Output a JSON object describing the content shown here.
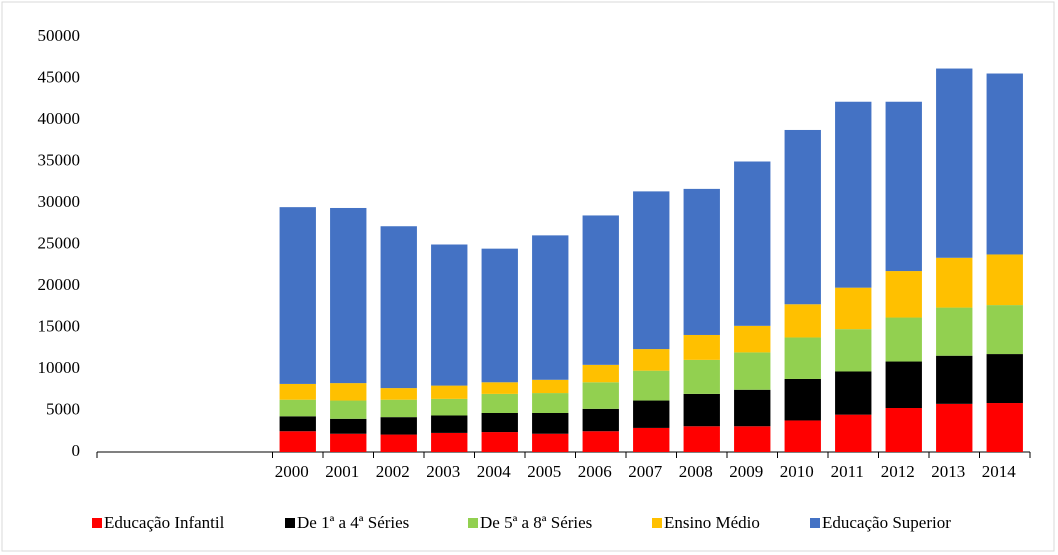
{
  "chart_data": {
    "type": "stacked_bar",
    "categories": [
      null,
      null,
      "2000",
      "2001",
      "2002",
      "2003",
      "2004",
      "2005",
      "2006",
      "2007",
      "2008",
      "2009",
      "2010",
      "2011",
      "2012",
      "2013",
      "2014"
    ],
    "series": [
      {
        "name": "Educação Infantil",
        "color": "#ff0000",
        "values": [
          null,
          null,
          2500,
          2200,
          2100,
          2300,
          2400,
          2200,
          2500,
          2900,
          3100,
          3100,
          3800,
          4500,
          5300,
          5800,
          5900
        ]
      },
      {
        "name": "De 1ª a 4ª  Séries",
        "color": "#000000",
        "values": [
          null,
          null,
          1800,
          1800,
          2100,
          2100,
          2300,
          2500,
          2700,
          3300,
          3900,
          4400,
          5000,
          5200,
          5600,
          5800,
          5900
        ]
      },
      {
        "name": "De 5ª a 8ª  Séries",
        "color": "#92d050",
        "values": [
          null,
          null,
          2000,
          2200,
          2100,
          2000,
          2300,
          2400,
          3200,
          3600,
          4100,
          4500,
          5000,
          5100,
          5300,
          5800,
          5900
        ]
      },
      {
        "name": "Ensino Médio",
        "color": "#ffc000",
        "values": [
          null,
          null,
          1900,
          2100,
          1400,
          1600,
          1400,
          1600,
          2100,
          2600,
          3000,
          3200,
          4000,
          5000,
          5600,
          6000,
          6100
        ]
      },
      {
        "name": "Educação Superior",
        "color": "#4472c4",
        "values": [
          null,
          null,
          21300,
          21100,
          19500,
          17000,
          16100,
          17400,
          18000,
          19000,
          17600,
          19800,
          21000,
          22400,
          20400,
          22800,
          21800
        ]
      }
    ],
    "ylim": [
      0,
      50000
    ],
    "yticks": [
      0,
      5000,
      10000,
      15000,
      20000,
      25000,
      30000,
      35000,
      40000,
      45000,
      50000
    ],
    "grid": false,
    "legend": "bottom"
  }
}
